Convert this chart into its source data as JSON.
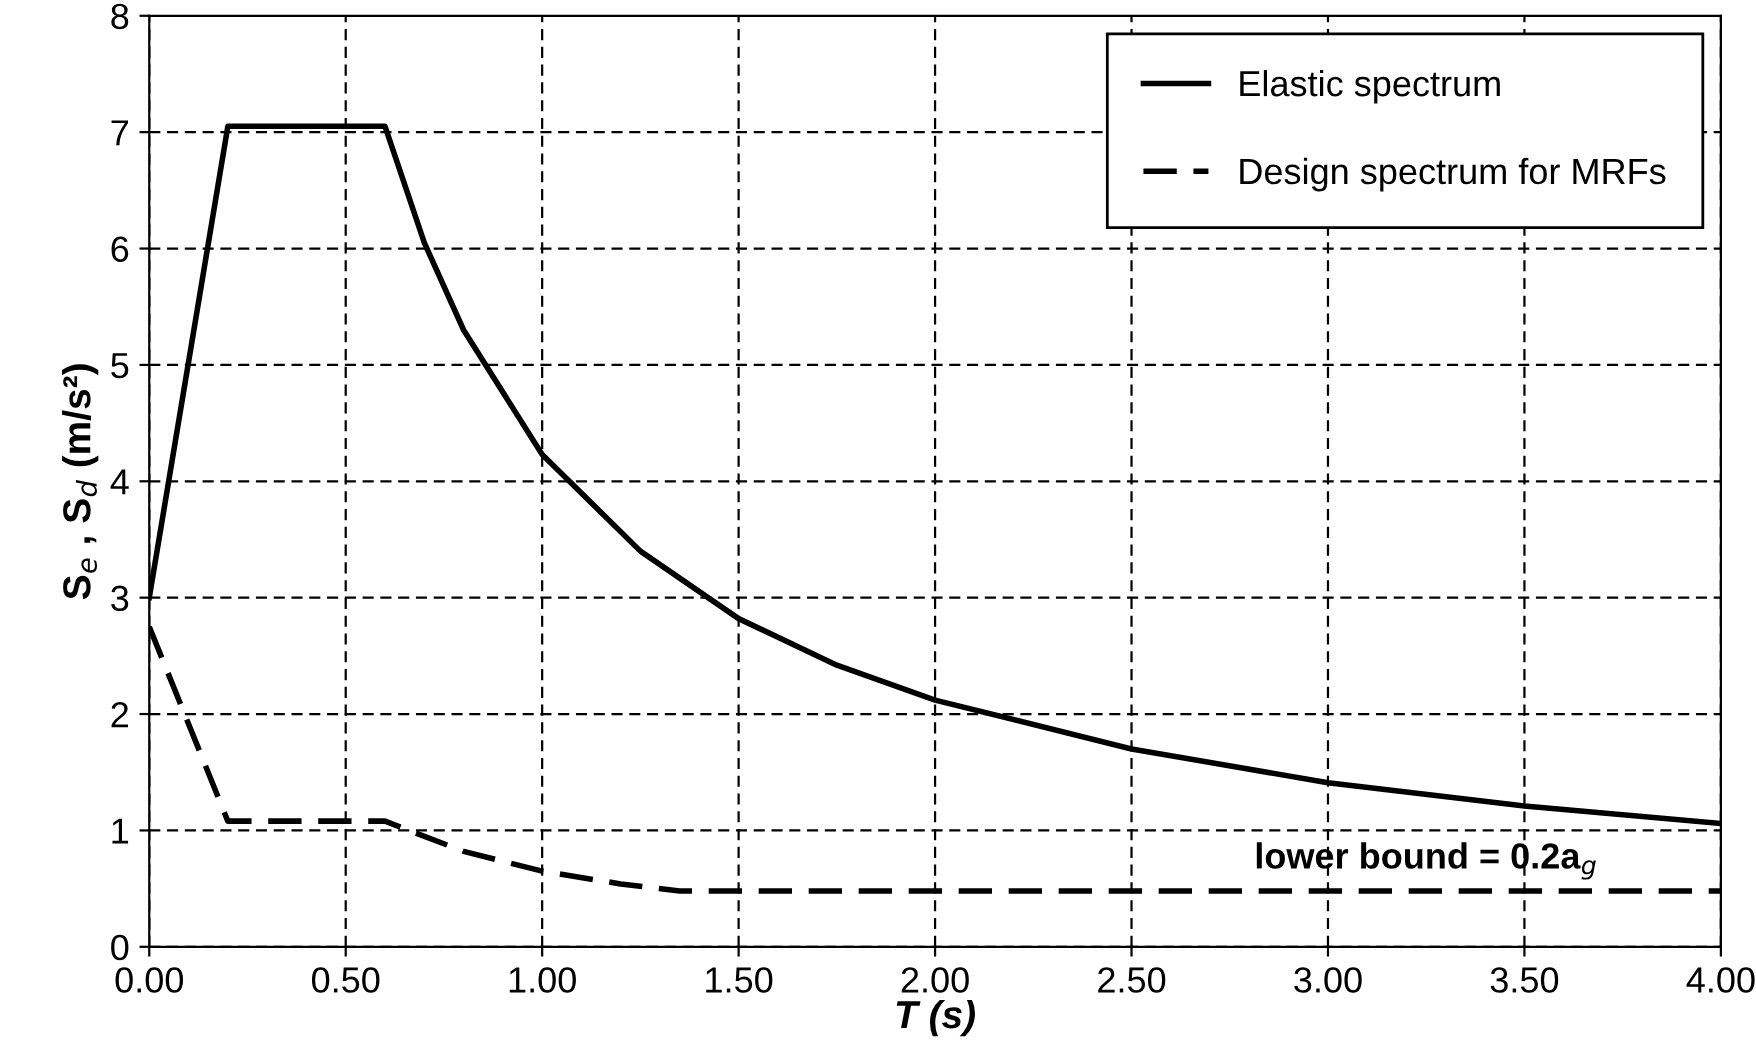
{
  "chart_data": {
    "type": "line",
    "xlabel": "T (s)",
    "ylabel": "S$_{e}$ , S$_{d}$ (m/s²)",
    "xlim": [
      0,
      4
    ],
    "ylim": [
      0,
      8
    ],
    "xticks": [
      {
        "value": 0,
        "label": "0.00"
      },
      {
        "value": 0.5,
        "label": "0.50"
      },
      {
        "value": 1,
        "label": "1.00"
      },
      {
        "value": 1.5,
        "label": "1.50"
      },
      {
        "value": 2,
        "label": "2.00"
      },
      {
        "value": 2.5,
        "label": "2.50"
      },
      {
        "value": 3,
        "label": "3.00"
      },
      {
        "value": 3.5,
        "label": "3.50"
      },
      {
        "value": 4,
        "label": "4.00"
      }
    ],
    "yticks": [
      0,
      1,
      2,
      3,
      4,
      5,
      6,
      7,
      8
    ],
    "grid": true,
    "legend": "top right",
    "marker": "none",
    "series": [
      {
        "name": "Elastic spectrum",
        "color": "#000000",
        "line_style": "solid",
        "x": [
          0,
          0.2,
          0.6,
          0.7,
          0.8,
          1.0,
          1.25,
          1.5,
          1.75,
          2.0,
          2.5,
          3.0,
          3.5,
          4.0
        ],
        "values": [
          3,
          7.05,
          7.05,
          6.05,
          5.3,
          4.23,
          3.4,
          2.82,
          2.42,
          2.12,
          1.7,
          1.41,
          1.21,
          1.06
        ]
      },
      {
        "name": "Design spectrum for MRFs",
        "color": "#000000",
        "line_style": "dashed",
        "x": [
          0,
          0.2,
          0.6,
          0.8,
          1.0,
          1.2,
          1.35,
          4.0
        ],
        "values": [
          2.75,
          1.08,
          1.08,
          0.82,
          0.65,
          0.54,
          0.48,
          0.48
        ]
      }
    ],
    "annotations": [
      {
        "text": "lower bound = 0.2a$_{g}$",
        "x": 3.25,
        "y": 0.48
      }
    ]
  }
}
